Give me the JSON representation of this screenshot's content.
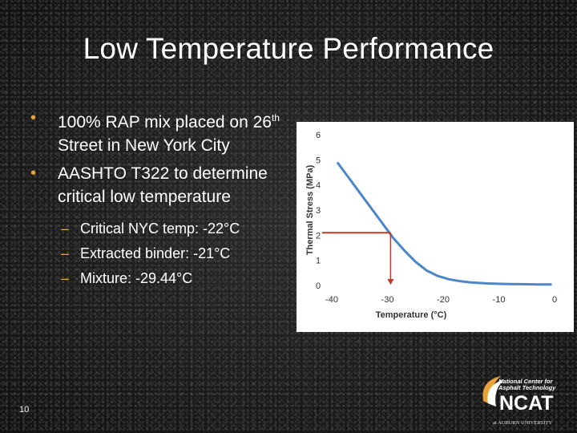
{
  "slide": {
    "title": "Low Temperature Performance",
    "page_number": "10"
  },
  "bullets": [
    {
      "pre": "100% RAP mix placed on 26",
      "sup": "th",
      "post": " Street in New York City"
    },
    {
      "text": "AASHTO T322 to determine critical low temperature"
    }
  ],
  "sub_bullets": [
    "Critical NYC temp: -22°C",
    "Extracted binder: -21°C",
    "Mixture: -29.44°C"
  ],
  "logo": {
    "line1": "National Center for",
    "line2": "Asphalt Technology",
    "acronym": "NCAT",
    "footer": "at AUBURN UNIVERSITY"
  },
  "colors": {
    "bullet_accent": "#e8a23a",
    "curve": "#4a86c8",
    "marker": "#c0392b"
  },
  "chart_data": {
    "type": "line",
    "xlabel": "Temperature (°C)",
    "ylabel": "Thermal Stress (MPa)",
    "xlim": [
      -40,
      0
    ],
    "ylim": [
      0,
      6
    ],
    "x_ticks": [
      "-40",
      "-30",
      "-20",
      "-10",
      "0"
    ],
    "y_ticks": [
      "0",
      "1",
      "2",
      "3",
      "4",
      "5",
      "6"
    ],
    "grid": false,
    "series": [
      {
        "x": [
          -39,
          -37,
          -35,
          -33,
          -31,
          -30,
          -29,
          -27,
          -25,
          -23,
          -21,
          -19,
          -17,
          -15,
          -12,
          -9,
          -6,
          -3,
          -0.5
        ],
        "y": [
          4.9,
          4.3,
          3.7,
          3.1,
          2.5,
          2.2,
          1.9,
          1.4,
          0.95,
          0.6,
          0.38,
          0.25,
          0.17,
          0.12,
          0.08,
          0.06,
          0.05,
          0.04,
          0.04
        ]
      }
    ],
    "annotation": {
      "x": -29.44,
      "y": 2.1
    }
  }
}
